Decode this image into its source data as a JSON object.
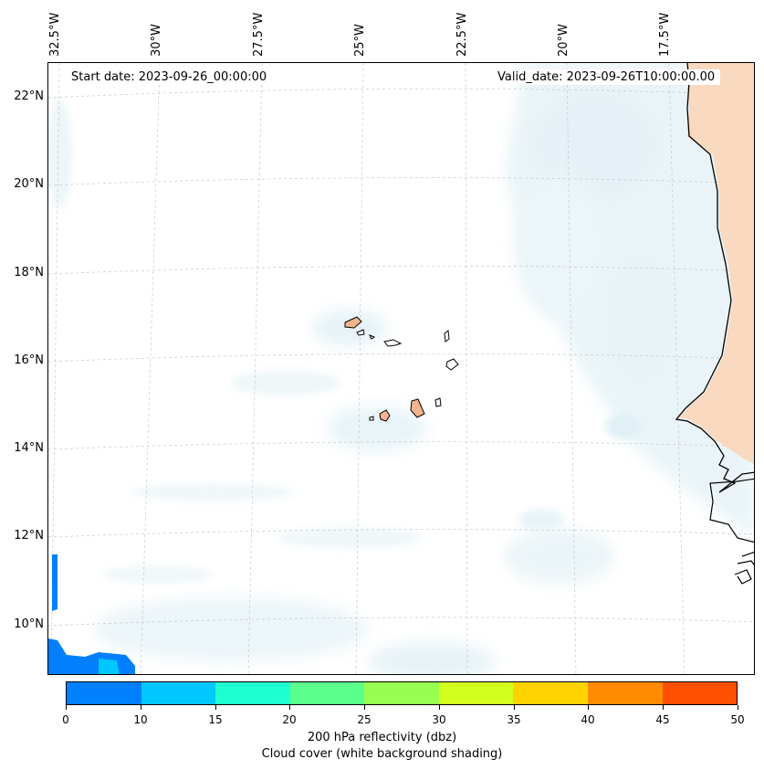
{
  "map": {
    "start_date": "Start date: 2023-09-26_00:00:00",
    "valid_date": "Valid_date: 2023-09-26T10:00:00.00",
    "lon_labels": [
      "32.5°W",
      "30°W",
      "27.5°W",
      "25°W",
      "22.5°W",
      "20°W",
      "17.5°W"
    ],
    "lat_labels": [
      "22°N",
      "20°N",
      "18°N",
      "16°N",
      "14°N",
      "12°N",
      "10°N"
    ]
  },
  "colorbar": {
    "title": "200 hPa reflectivity (dbz)",
    "subtitle": "Cloud cover (white background shading)",
    "ticks": [
      "0",
      "10",
      "15",
      "20",
      "25",
      "30",
      "35",
      "40",
      "45",
      "50"
    ],
    "colors": [
      "#0080ff",
      "#00c8ff",
      "#1effd2",
      "#5aff8c",
      "#96ff50",
      "#d2ff1e",
      "#ffd200",
      "#ff8c00",
      "#ff5000"
    ]
  },
  "colors": {
    "land": "#f9d9bf",
    "cloud": "#cfe8f0",
    "reflectivity_low": "#0080ff"
  }
}
